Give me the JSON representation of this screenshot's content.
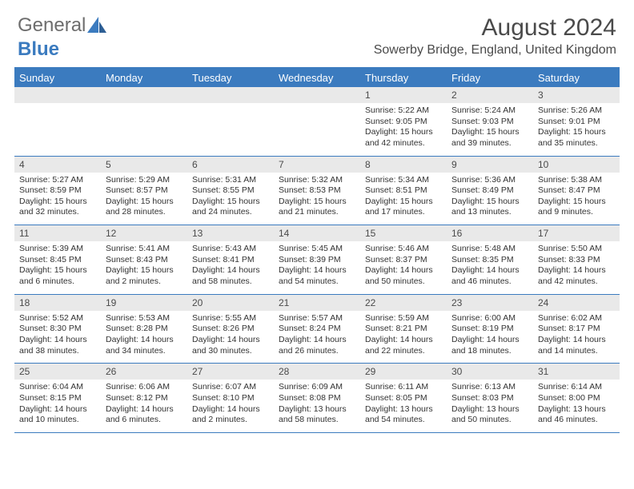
{
  "brand": {
    "word1": "General",
    "word2": "Blue"
  },
  "title": "August 2024",
  "location": "Sowerby Bridge, England, United Kingdom",
  "colors": {
    "accent": "#3b7bbf",
    "header_bg": "#3b7bbf",
    "header_fg": "#ffffff",
    "daynum_bg": "#e9e9e9",
    "text": "#333333",
    "title_text": "#4a4a4a"
  },
  "days_of_week": [
    "Sunday",
    "Monday",
    "Tuesday",
    "Wednesday",
    "Thursday",
    "Friday",
    "Saturday"
  ],
  "weeks": [
    {
      "nums": [
        "",
        "",
        "",
        "",
        "1",
        "2",
        "3"
      ],
      "cells": [
        null,
        null,
        null,
        null,
        {
          "sunrise": "5:22 AM",
          "sunset": "9:05 PM",
          "dl1": "Daylight: 15 hours",
          "dl2": "and 42 minutes."
        },
        {
          "sunrise": "5:24 AM",
          "sunset": "9:03 PM",
          "dl1": "Daylight: 15 hours",
          "dl2": "and 39 minutes."
        },
        {
          "sunrise": "5:26 AM",
          "sunset": "9:01 PM",
          "dl1": "Daylight: 15 hours",
          "dl2": "and 35 minutes."
        }
      ]
    },
    {
      "nums": [
        "4",
        "5",
        "6",
        "7",
        "8",
        "9",
        "10"
      ],
      "cells": [
        {
          "sunrise": "5:27 AM",
          "sunset": "8:59 PM",
          "dl1": "Daylight: 15 hours",
          "dl2": "and 32 minutes."
        },
        {
          "sunrise": "5:29 AM",
          "sunset": "8:57 PM",
          "dl1": "Daylight: 15 hours",
          "dl2": "and 28 minutes."
        },
        {
          "sunrise": "5:31 AM",
          "sunset": "8:55 PM",
          "dl1": "Daylight: 15 hours",
          "dl2": "and 24 minutes."
        },
        {
          "sunrise": "5:32 AM",
          "sunset": "8:53 PM",
          "dl1": "Daylight: 15 hours",
          "dl2": "and 21 minutes."
        },
        {
          "sunrise": "5:34 AM",
          "sunset": "8:51 PM",
          "dl1": "Daylight: 15 hours",
          "dl2": "and 17 minutes."
        },
        {
          "sunrise": "5:36 AM",
          "sunset": "8:49 PM",
          "dl1": "Daylight: 15 hours",
          "dl2": "and 13 minutes."
        },
        {
          "sunrise": "5:38 AM",
          "sunset": "8:47 PM",
          "dl1": "Daylight: 15 hours",
          "dl2": "and 9 minutes."
        }
      ]
    },
    {
      "nums": [
        "11",
        "12",
        "13",
        "14",
        "15",
        "16",
        "17"
      ],
      "cells": [
        {
          "sunrise": "5:39 AM",
          "sunset": "8:45 PM",
          "dl1": "Daylight: 15 hours",
          "dl2": "and 6 minutes."
        },
        {
          "sunrise": "5:41 AM",
          "sunset": "8:43 PM",
          "dl1": "Daylight: 15 hours",
          "dl2": "and 2 minutes."
        },
        {
          "sunrise": "5:43 AM",
          "sunset": "8:41 PM",
          "dl1": "Daylight: 14 hours",
          "dl2": "and 58 minutes."
        },
        {
          "sunrise": "5:45 AM",
          "sunset": "8:39 PM",
          "dl1": "Daylight: 14 hours",
          "dl2": "and 54 minutes."
        },
        {
          "sunrise": "5:46 AM",
          "sunset": "8:37 PM",
          "dl1": "Daylight: 14 hours",
          "dl2": "and 50 minutes."
        },
        {
          "sunrise": "5:48 AM",
          "sunset": "8:35 PM",
          "dl1": "Daylight: 14 hours",
          "dl2": "and 46 minutes."
        },
        {
          "sunrise": "5:50 AM",
          "sunset": "8:33 PM",
          "dl1": "Daylight: 14 hours",
          "dl2": "and 42 minutes."
        }
      ]
    },
    {
      "nums": [
        "18",
        "19",
        "20",
        "21",
        "22",
        "23",
        "24"
      ],
      "cells": [
        {
          "sunrise": "5:52 AM",
          "sunset": "8:30 PM",
          "dl1": "Daylight: 14 hours",
          "dl2": "and 38 minutes."
        },
        {
          "sunrise": "5:53 AM",
          "sunset": "8:28 PM",
          "dl1": "Daylight: 14 hours",
          "dl2": "and 34 minutes."
        },
        {
          "sunrise": "5:55 AM",
          "sunset": "8:26 PM",
          "dl1": "Daylight: 14 hours",
          "dl2": "and 30 minutes."
        },
        {
          "sunrise": "5:57 AM",
          "sunset": "8:24 PM",
          "dl1": "Daylight: 14 hours",
          "dl2": "and 26 minutes."
        },
        {
          "sunrise": "5:59 AM",
          "sunset": "8:21 PM",
          "dl1": "Daylight: 14 hours",
          "dl2": "and 22 minutes."
        },
        {
          "sunrise": "6:00 AM",
          "sunset": "8:19 PM",
          "dl1": "Daylight: 14 hours",
          "dl2": "and 18 minutes."
        },
        {
          "sunrise": "6:02 AM",
          "sunset": "8:17 PM",
          "dl1": "Daylight: 14 hours",
          "dl2": "and 14 minutes."
        }
      ]
    },
    {
      "nums": [
        "25",
        "26",
        "27",
        "28",
        "29",
        "30",
        "31"
      ],
      "cells": [
        {
          "sunrise": "6:04 AM",
          "sunset": "8:15 PM",
          "dl1": "Daylight: 14 hours",
          "dl2": "and 10 minutes."
        },
        {
          "sunrise": "6:06 AM",
          "sunset": "8:12 PM",
          "dl1": "Daylight: 14 hours",
          "dl2": "and 6 minutes."
        },
        {
          "sunrise": "6:07 AM",
          "sunset": "8:10 PM",
          "dl1": "Daylight: 14 hours",
          "dl2": "and 2 minutes."
        },
        {
          "sunrise": "6:09 AM",
          "sunset": "8:08 PM",
          "dl1": "Daylight: 13 hours",
          "dl2": "and 58 minutes."
        },
        {
          "sunrise": "6:11 AM",
          "sunset": "8:05 PM",
          "dl1": "Daylight: 13 hours",
          "dl2": "and 54 minutes."
        },
        {
          "sunrise": "6:13 AM",
          "sunset": "8:03 PM",
          "dl1": "Daylight: 13 hours",
          "dl2": "and 50 minutes."
        },
        {
          "sunrise": "6:14 AM",
          "sunset": "8:00 PM",
          "dl1": "Daylight: 13 hours",
          "dl2": "and 46 minutes."
        }
      ]
    }
  ],
  "labels": {
    "sunrise": "Sunrise: ",
    "sunset": "Sunset: "
  }
}
